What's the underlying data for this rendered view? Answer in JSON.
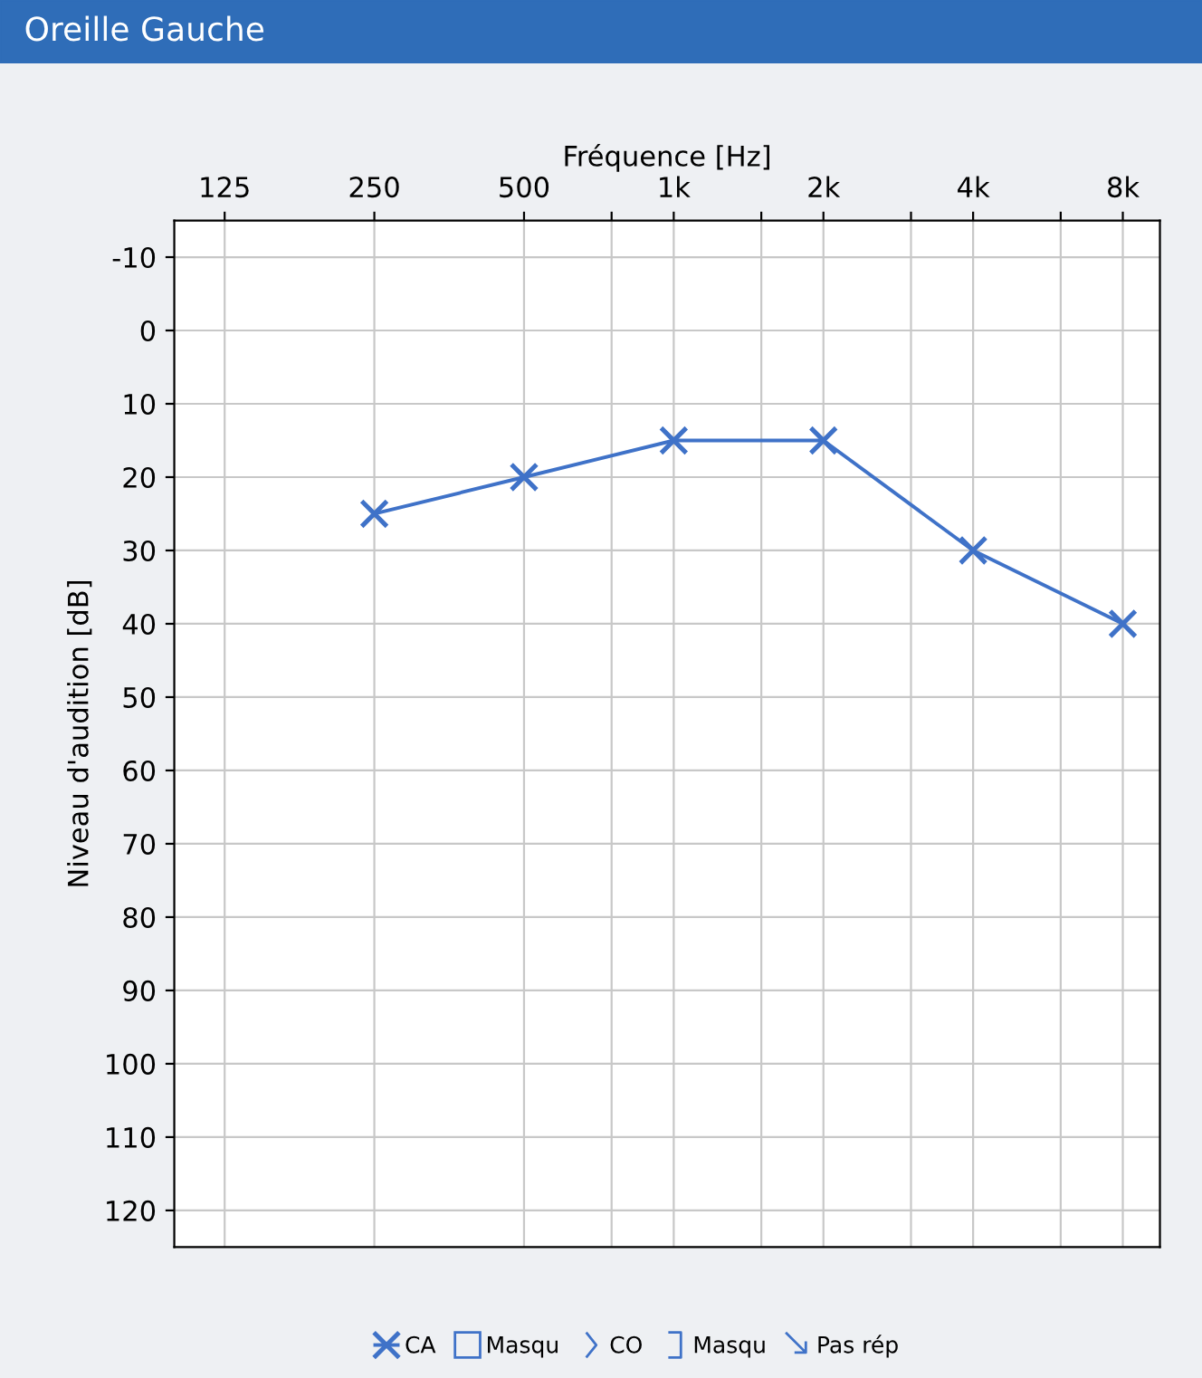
{
  "chart_data": {
    "type": "line",
    "title": "Oreille Gauche",
    "xlabel": "Fréquence [Hz]",
    "ylabel": "Niveau d'audition [dB]",
    "x": [
      250,
      500,
      1000,
      2000,
      4000,
      8000
    ],
    "series": [
      {
        "name": "CA",
        "color": "#3f72c8",
        "values": [
          25,
          20,
          15,
          15,
          30,
          40
        ]
      }
    ],
    "log": "x",
    "xlim": [
      99,
      9500
    ],
    "xticks": [
      125,
      250,
      500,
      {
        "value": 750,
        "label": null
      },
      {
        "value": 1000,
        "label": "1k"
      },
      {
        "value": 1500,
        "label": null
      },
      {
        "value": 2000,
        "label": "2k"
      },
      {
        "value": 3000,
        "label": null
      },
      {
        "value": 4000,
        "label": "4k"
      },
      {
        "value": 6000,
        "label": null
      },
      {
        "value": 8000,
        "label": "8k"
      }
    ],
    "ylim": [
      125,
      -15
    ],
    "yticks": [
      -10,
      0,
      10,
      20,
      30,
      40,
      50,
      60,
      70,
      80,
      90,
      100,
      110,
      120
    ],
    "grid": true,
    "marker": "cross",
    "line_style": "solid",
    "legend": "bottom",
    "annotations": [
      "Masqu",
      "CO",
      "Masqu",
      "Pas rép"
    ]
  }
}
